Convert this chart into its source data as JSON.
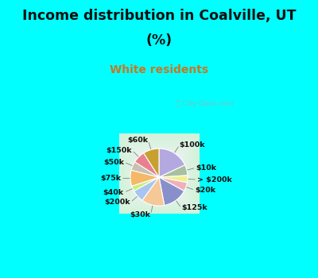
{
  "title_line1": "Income distribution in Coalville, UT",
  "title_line2": "(%)",
  "subtitle": "White residents",
  "title_color": "#111111",
  "subtitle_color": "#c87820",
  "bg_cyan": "#00ffff",
  "bg_chart_color": "#d0ede0",
  "watermark": "ⓘ City-Data.com",
  "labels": [
    "$100k",
    "$10k",
    "> $200k",
    "$20k",
    "$125k",
    "$30k",
    "$200k",
    "$40k",
    "$75k",
    "$50k",
    "$150k",
    "$60k"
  ],
  "values": [
    18,
    6,
    4,
    5,
    14,
    13,
    7,
    3,
    9,
    5,
    7,
    9
  ],
  "colors": [
    "#b3a8e0",
    "#a8c0a0",
    "#f0f090",
    "#f0b0b8",
    "#8890cc",
    "#f5c898",
    "#a8c4f0",
    "#c8f080",
    "#f5b868",
    "#c8c0b0",
    "#e88090",
    "#c8a030"
  ],
  "start_angle": 90,
  "figsize": [
    4.0,
    3.5
  ],
  "dpi": 100
}
